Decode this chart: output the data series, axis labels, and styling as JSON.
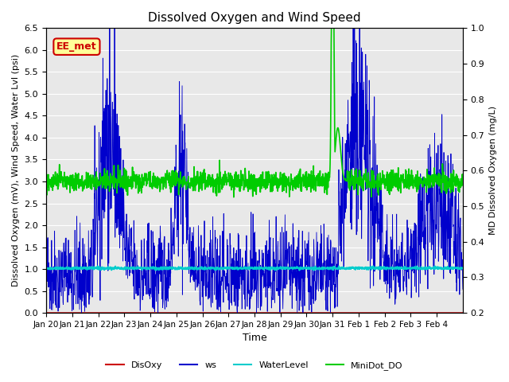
{
  "title": "Dissolved Oxygen and Wind Speed",
  "ylabel_left": "Dissolved Oxygen (mV), Wind Speed, Water Lvl (psi)",
  "ylabel_right": "MD Dissolved Oxygen (mg/L)",
  "xlabel": "Time",
  "ylim_left": [
    0.0,
    6.5
  ],
  "ylim_right": [
    0.2,
    1.0
  ],
  "annotation_text": "EE_met",
  "annotation_color": "#cc0000",
  "annotation_bg": "#ffff99",
  "bg_color": "#e8e8e8",
  "disoxy_color": "#cc0000",
  "ws_color": "#0000cc",
  "waterlevel_color": "#00cccc",
  "minidot_color": "#00cc00",
  "x_tick_labels": [
    "Jan 20",
    "Jan 21",
    "Jan 22",
    "Jan 23",
    "Jan 24",
    "Jan 25",
    "Jan 26",
    "Jan 27",
    "Jan 28",
    "Jan 29",
    "Jan 30",
    "Jan 31",
    "Feb 1",
    "Feb 2",
    "Feb 3",
    "Feb 4"
  ],
  "yticks_left": [
    0.0,
    0.5,
    1.0,
    1.5,
    2.0,
    2.5,
    3.0,
    3.5,
    4.0,
    4.5,
    5.0,
    5.5,
    6.0,
    6.5
  ],
  "yticks_right": [
    0.2,
    0.3,
    0.4,
    0.5,
    0.6,
    0.7,
    0.8,
    0.9,
    1.0
  ],
  "seed": 42,
  "n_days": 16
}
